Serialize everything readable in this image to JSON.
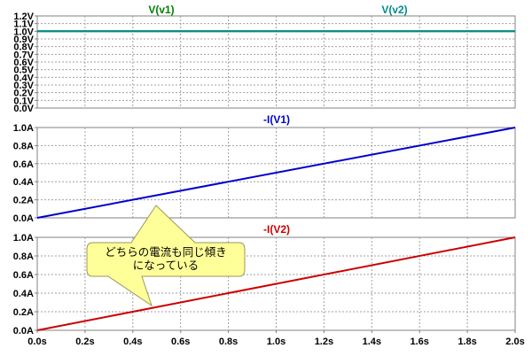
{
  "chart_data": [
    {
      "type": "line",
      "series": [
        {
          "name": "V(v1)",
          "color": "#008000",
          "x": [
            0,
            2.0
          ],
          "y": [
            1.0,
            1.0
          ]
        },
        {
          "name": "V(v2)",
          "color": "#008b8b",
          "x": [
            0,
            2.0
          ],
          "y": [
            1.0,
            1.0
          ]
        }
      ],
      "ylim": [
        0,
        1.2
      ],
      "yticks": [
        0.0,
        0.1,
        0.2,
        0.3,
        0.4,
        0.5,
        0.6,
        0.7,
        0.8,
        0.9,
        1.0,
        1.1,
        1.2
      ],
      "ytick_labels": [
        "0.0V",
        "0.1V",
        "0.2V",
        "0.3V",
        "0.4V",
        "0.5V",
        "0.6V",
        "0.7V",
        "0.8V",
        "0.9V",
        "1.0V",
        "1.1V",
        "1.2V"
      ],
      "grid": true
    },
    {
      "type": "line",
      "series": [
        {
          "name": "-I(V1)",
          "color": "#0000cd",
          "x": [
            0,
            2.0
          ],
          "y": [
            0,
            1.0
          ]
        }
      ],
      "ylim": [
        0,
        1.0
      ],
      "yticks": [
        0.0,
        0.2,
        0.4,
        0.6,
        0.8,
        1.0
      ],
      "ytick_labels": [
        "0.0A",
        "0.2A",
        "0.4A",
        "0.6A",
        "0.8A",
        "1.0A"
      ],
      "grid": true
    },
    {
      "type": "line",
      "series": [
        {
          "name": "-I(V2)",
          "color": "#cc0000",
          "x": [
            0,
            2.0
          ],
          "y": [
            0,
            1.0
          ]
        }
      ],
      "ylim": [
        0,
        1.0
      ],
      "yticks": [
        0.0,
        0.2,
        0.4,
        0.6,
        0.8,
        1.0
      ],
      "ytick_labels": [
        "0.0A",
        "0.2A",
        "0.4A",
        "0.6A",
        "0.8A",
        "1.0A"
      ],
      "grid": true
    }
  ],
  "x_axis": {
    "xlim": [
      0,
      2.0
    ],
    "xticks": [
      0,
      0.2,
      0.4,
      0.6,
      0.8,
      1.0,
      1.2,
      1.4,
      1.6,
      1.8,
      2.0
    ],
    "xtick_labels": [
      "0.0s",
      "0.2s",
      "0.4s",
      "0.6s",
      "0.8s",
      "1.0s",
      "1.2s",
      "1.4s",
      "1.6s",
      "1.8s",
      "2.0s"
    ]
  },
  "annotation": {
    "lines": [
      "どちらの電流も同じ傾き",
      "になっている"
    ],
    "fill": "#ffff99"
  }
}
